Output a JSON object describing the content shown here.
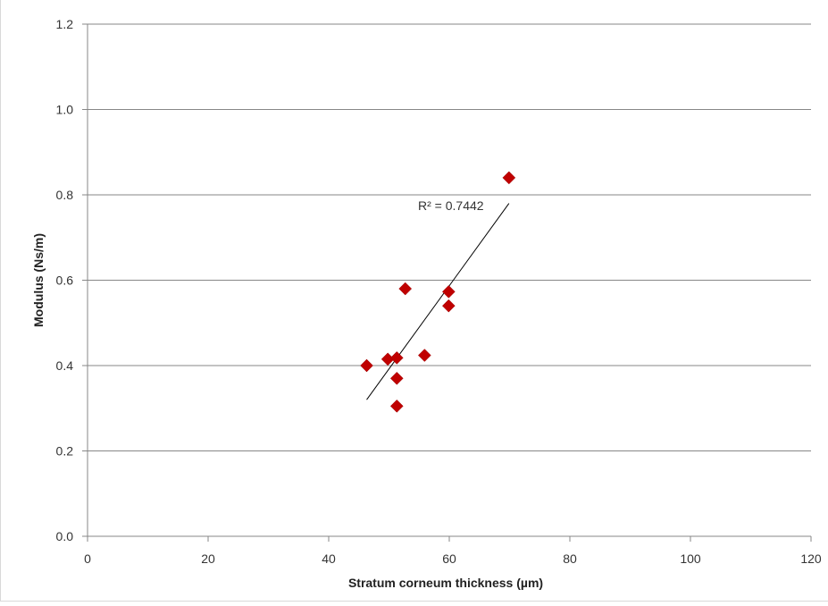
{
  "chart_data": {
    "type": "scatter",
    "title": "",
    "xlabel": "Stratum corneum thickness (µm)",
    "ylabel": "Modulus (Ns/m)",
    "xlim": [
      0,
      120
    ],
    "ylim": [
      0,
      1.2
    ],
    "x_ticks": [
      "0",
      "20",
      "40",
      "60",
      "80",
      "100",
      "120"
    ],
    "y_ticks": [
      "0.0",
      "0.2",
      "0.4",
      "0.6",
      "0.8",
      "1.0",
      "1.2"
    ],
    "grid": "horizontal",
    "marker_color": "#c00000",
    "marker": "diamond",
    "series": [
      {
        "points": [
          {
            "x": 46.3,
            "y": 0.4
          },
          {
            "x": 49.8,
            "y": 0.415
          },
          {
            "x": 51.3,
            "y": 0.418
          },
          {
            "x": 51.3,
            "y": 0.37
          },
          {
            "x": 51.3,
            "y": 0.305
          },
          {
            "x": 52.7,
            "y": 0.58
          },
          {
            "x": 55.9,
            "y": 0.424
          },
          {
            "x": 59.9,
            "y": 0.573
          },
          {
            "x": 59.9,
            "y": 0.54
          },
          {
            "x": 69.9,
            "y": 0.84
          }
        ]
      }
    ],
    "trendline": {
      "type": "linear",
      "x_range": [
        46.3,
        69.9
      ],
      "y_range": [
        0.32,
        0.78
      ],
      "label": "R² = 0.7442"
    }
  }
}
